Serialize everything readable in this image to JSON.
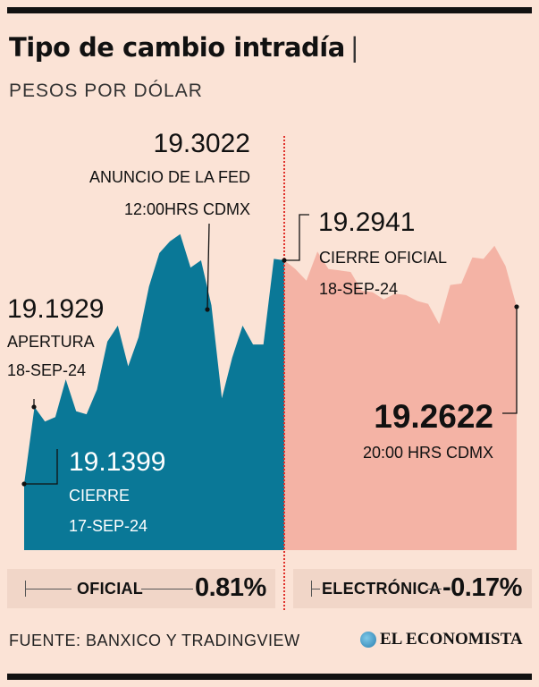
{
  "header": {
    "title": "Tipo de cambio intradía",
    "title_separator": "|",
    "subtitle": "PESOS POR DÓLAR"
  },
  "colors": {
    "oficial_fill": "#0a7897",
    "electronica_fill": "#f4b3a5",
    "divider": "#e0312a",
    "background": "#fbe3d6"
  },
  "annotations": {
    "apertura": {
      "value": "19.1929",
      "line1": "APERTURA",
      "line2": "18-SEP-24"
    },
    "cierre_previo": {
      "value": "19.1399",
      "line1": "CIERRE",
      "line2": "17-SEP-24"
    },
    "fed": {
      "value": "19.3022",
      "line1": "ANUNCIO DE LA FED",
      "line2": "12:00HRS CDMX"
    },
    "cierre_oficial": {
      "value": "19.2941",
      "line1": "CIERRE OFICIAL",
      "line2": "18-SEP-24"
    },
    "ultimo": {
      "value": "19.2622",
      "line1": "20:00 HRS CDMX"
    }
  },
  "summary": {
    "oficial": {
      "label": "OFICIAL",
      "value": "0.81%"
    },
    "electronica": {
      "label": "ELECTRÓNICA",
      "value": "-0.17%"
    }
  },
  "footer": {
    "source": "FUENTE: BANXICO Y TRADINGVIEW",
    "brand": "EL ECONOMISTA"
  },
  "chart_data": {
    "type": "area",
    "title": "Tipo de cambio intradía",
    "ylabel": "Pesos por dólar",
    "ylim": [
      19.14,
      19.31
    ],
    "series": [
      {
        "name": "Oficial",
        "values": [
          19.14,
          19.193,
          19.183,
          19.186,
          19.212,
          19.19,
          19.188,
          19.205,
          19.238,
          19.249,
          19.221,
          19.241,
          19.276,
          19.299,
          19.307,
          19.312,
          19.289,
          19.294,
          19.263,
          19.199,
          19.227,
          19.249,
          19.236,
          19.236,
          19.295,
          19.294
        ]
      },
      {
        "name": "Electrónica",
        "values": [
          19.294,
          19.288,
          19.28,
          19.3,
          19.288,
          19.287,
          19.286,
          19.273,
          19.272,
          19.267,
          19.271,
          19.27,
          19.266,
          19.264,
          19.25,
          19.277,
          19.278,
          19.296,
          19.295,
          19.304,
          19.29,
          19.262
        ]
      }
    ]
  }
}
